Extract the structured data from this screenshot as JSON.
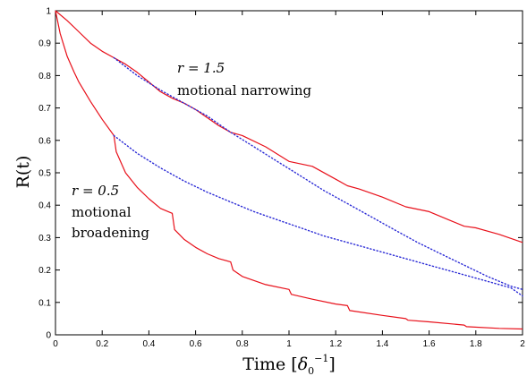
{
  "chart_data": {
    "type": "line",
    "xlabel": "Time [δ₀⁻¹]",
    "ylabel": "R(t)",
    "xlim": [
      0,
      2
    ],
    "ylim": [
      0,
      1
    ],
    "xticks": [
      "0",
      "0.2",
      "0.4",
      "0.6",
      "0.8",
      "1",
      "1.2",
      "1.4",
      "1.6",
      "1.8",
      "2"
    ],
    "yticks": [
      "0",
      "0.1",
      "0.2",
      "0.3",
      "0.4",
      "0.5",
      "0.6",
      "0.7",
      "0.8",
      "0.9",
      "1"
    ],
    "grid": false,
    "colors": {
      "solid": "#e8101a",
      "dotted": "#2b2bd6"
    },
    "series": [
      {
        "style": "solid",
        "x": [
          0,
          0.05,
          0.1,
          0.15,
          0.2,
          0.25,
          0.3,
          0.35,
          0.4,
          0.45,
          0.5,
          0.55,
          0.6,
          0.65,
          0.7,
          0.75,
          0.8,
          0.9,
          1.0,
          1.1,
          1.2,
          1.25,
          1.3,
          1.4,
          1.5,
          1.6,
          1.7,
          1.75,
          1.8,
          1.9,
          2.0
        ],
        "values": [
          1.0,
          0.97,
          0.935,
          0.9,
          0.875,
          0.855,
          0.835,
          0.81,
          0.78,
          0.75,
          0.73,
          0.715,
          0.695,
          0.67,
          0.645,
          0.625,
          0.615,
          0.58,
          0.535,
          0.52,
          0.48,
          0.46,
          0.45,
          0.425,
          0.395,
          0.38,
          0.35,
          0.335,
          0.33,
          0.31,
          0.285
        ]
      },
      {
        "style": "dotted",
        "x": [
          0.25,
          0.35,
          0.45,
          0.55,
          0.65,
          0.75,
          0.85,
          0.95,
          1.05,
          1.15,
          1.25,
          1.35,
          1.45,
          1.55,
          1.65,
          1.75,
          1.85,
          1.95,
          2.0
        ],
        "values": [
          0.855,
          0.8,
          0.755,
          0.715,
          0.675,
          0.625,
          0.58,
          0.535,
          0.49,
          0.445,
          0.405,
          0.365,
          0.325,
          0.285,
          0.25,
          0.215,
          0.18,
          0.15,
          0.14
        ]
      },
      {
        "style": "solid",
        "x": [
          0,
          0.02,
          0.05,
          0.08,
          0.1,
          0.15,
          0.2,
          0.25,
          0.26,
          0.3,
          0.35,
          0.4,
          0.45,
          0.5,
          0.51,
          0.55,
          0.6,
          0.65,
          0.7,
          0.75,
          0.76,
          0.8,
          0.9,
          1.0,
          1.01,
          1.1,
          1.2,
          1.25,
          1.26,
          1.4,
          1.5,
          1.51,
          1.6,
          1.75,
          1.76,
          1.9,
          2.0
        ],
        "values": [
          1.0,
          0.93,
          0.86,
          0.81,
          0.78,
          0.72,
          0.665,
          0.615,
          0.565,
          0.5,
          0.455,
          0.42,
          0.39,
          0.375,
          0.325,
          0.295,
          0.27,
          0.25,
          0.235,
          0.225,
          0.2,
          0.18,
          0.155,
          0.14,
          0.125,
          0.11,
          0.095,
          0.09,
          0.075,
          0.06,
          0.05,
          0.045,
          0.04,
          0.03,
          0.025,
          0.02,
          0.018
        ]
      },
      {
        "style": "dotted",
        "x": [
          0.25,
          0.35,
          0.45,
          0.55,
          0.65,
          0.75,
          0.85,
          0.95,
          1.05,
          1.15,
          1.25,
          1.35,
          1.45,
          1.55,
          1.65,
          1.75,
          1.85,
          1.95,
          2.0
        ],
        "values": [
          0.615,
          0.56,
          0.515,
          0.475,
          0.44,
          0.41,
          0.38,
          0.355,
          0.33,
          0.305,
          0.285,
          0.265,
          0.245,
          0.225,
          0.205,
          0.185,
          0.165,
          0.145,
          0.12
        ]
      }
    ],
    "annotations": [
      {
        "math": "r = 1.5",
        "text": "motional narrowing"
      },
      {
        "math": "r = 0.5",
        "lines": [
          "motional",
          "broadening"
        ]
      }
    ]
  }
}
